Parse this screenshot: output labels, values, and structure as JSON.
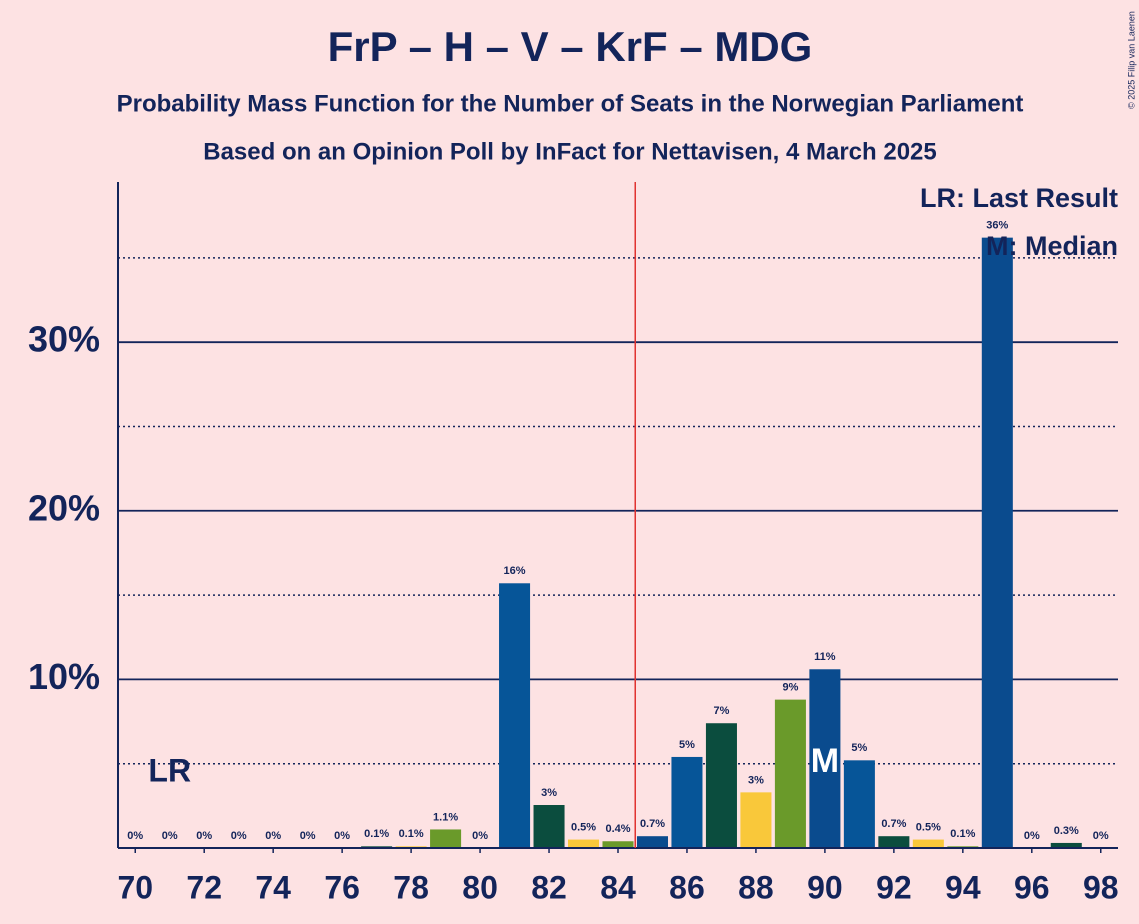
{
  "chart_data": {
    "type": "bar",
    "title": "FrP – H – V – KrF – MDG",
    "subtitle": "Probability Mass Function for the Number of Seats in the Norwegian Parliament",
    "subtitle2": "Based on an Opinion Poll by InFact for Nettavisen, 4 March 2025",
    "copyright": "© 2025 Filip van Laenen",
    "x": [
      70,
      71,
      72,
      73,
      74,
      75,
      76,
      77,
      78,
      79,
      80,
      81,
      82,
      83,
      84,
      85,
      86,
      87,
      88,
      89,
      90,
      91,
      92,
      93,
      94,
      95,
      96,
      97,
      98
    ],
    "values": [
      0,
      0,
      0,
      0,
      0,
      0,
      0,
      0.1,
      0.1,
      1.1,
      0,
      15.7,
      2.55,
      0.5,
      0.4,
      0.7,
      5.4,
      7.4,
      3.3,
      8.8,
      10.6,
      5.2,
      0.7,
      0.5,
      0.1,
      36.2,
      0,
      0.3,
      0
    ],
    "value_labels": [
      "0%",
      "0%",
      "0%",
      "0%",
      "0%",
      "0%",
      "0%",
      "0.1%",
      "0.1%",
      "1.1%",
      "0%",
      "16%",
      "3%",
      "0.5%",
      "0.4%",
      "0.7%",
      "5%",
      "7%",
      "3%",
      "9%",
      "11%",
      "5%",
      "0.7%",
      "0.5%",
      "0.1%",
      "36%",
      "0%",
      "0.3%",
      "0%"
    ],
    "colors": [
      "#0a4b8e",
      "#065598",
      "#0b4d3e",
      "#f9c83a",
      "#6a9a2a",
      "#0a4b8e",
      "#065598",
      "#0b4d3e",
      "#f9c83a",
      "#6a9a2a",
      "#0a4b8e",
      "#065598",
      "#0b4d3e",
      "#f9c83a",
      "#6a9a2a",
      "#0a4b8e",
      "#065598",
      "#0b4d3e",
      "#f9c83a",
      "#6a9a2a",
      "#0a4b8e",
      "#065598",
      "#0b4d3e",
      "#f9c83a",
      "#6a9a2a",
      "#0a4b8e",
      "#065598",
      "#0b4d3e",
      "#f9c83a"
    ],
    "xlim": [
      69.5,
      98.5
    ],
    "xticks": [
      70,
      72,
      74,
      76,
      78,
      80,
      82,
      84,
      86,
      88,
      90,
      92,
      94,
      96,
      98
    ],
    "ylim": [
      0,
      39.5
    ],
    "yticks": [
      {
        "value": 10,
        "label": "10%"
      },
      {
        "value": 20,
        "label": "20%"
      },
      {
        "value": 30,
        "label": "30%"
      }
    ],
    "minor_gridlines": [
      5,
      15,
      25,
      35
    ],
    "grid": true,
    "majority_line": 84.5,
    "last_result": 71,
    "last_result_label": "LR",
    "median": 90,
    "median_label": "M",
    "legend": [
      "LR: Last Result",
      "M: Median"
    ]
  }
}
